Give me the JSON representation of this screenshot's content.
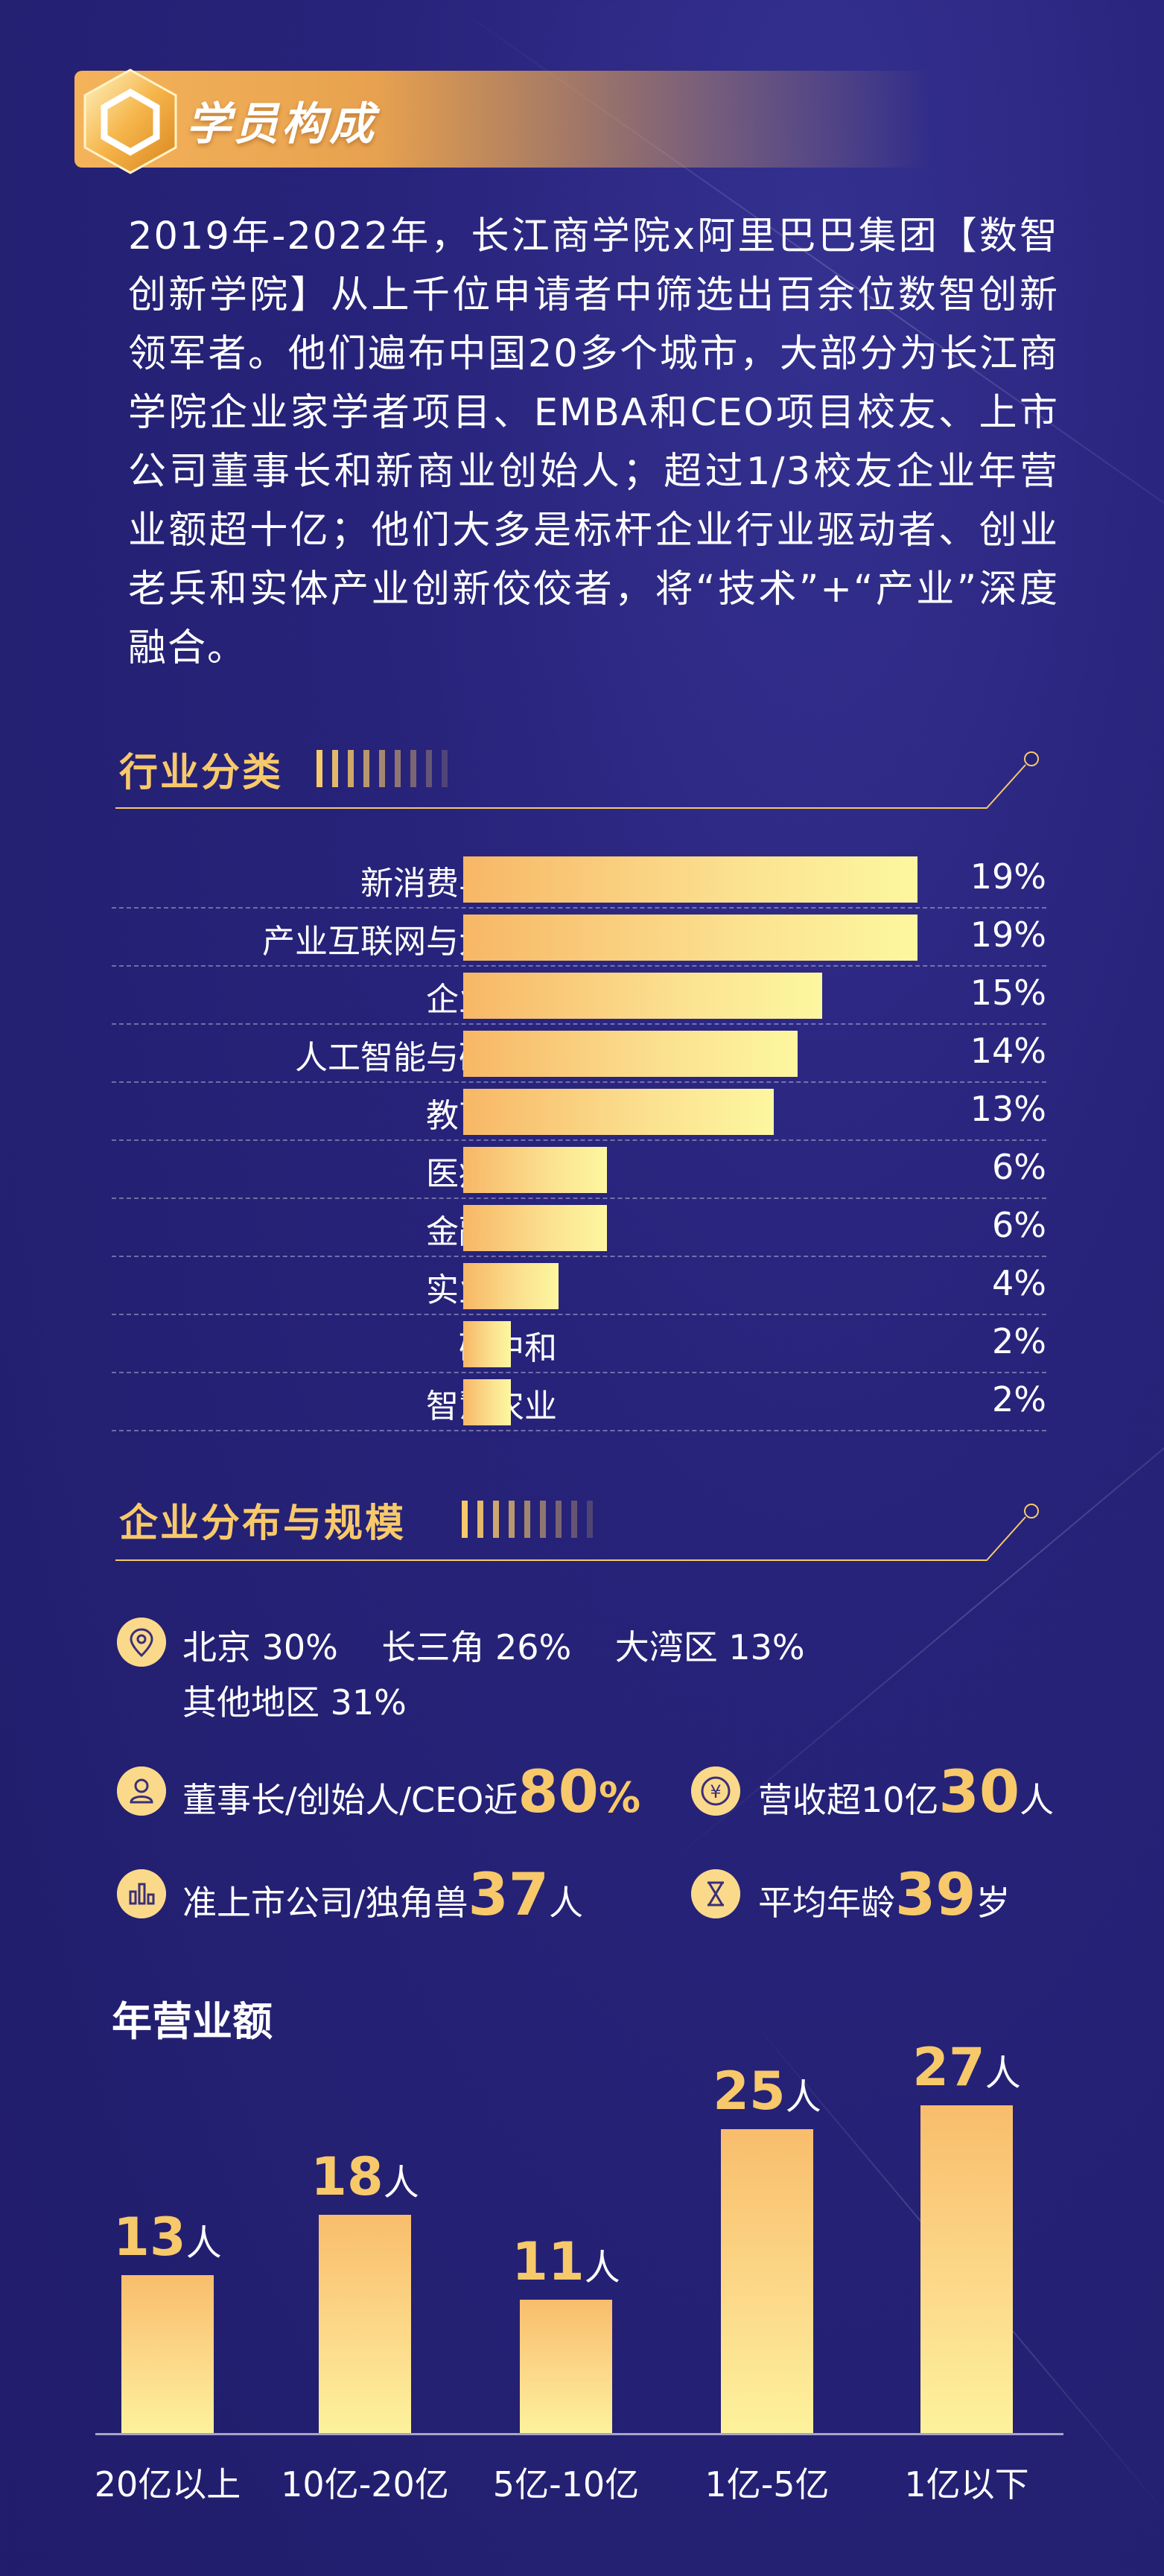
{
  "header": {
    "title": "学员构成"
  },
  "intro": {
    "text": "2019年-2022年，长江商学院x阿里巴巴集团【数智创新学院】从上千位申请者中筛选出百余位数智创新领军者。他们遍布中国20多个城市，大部分为长江商学院企业家学者项目、EMBA和CEO项目校友、上市公司董事长和新商业创始人；超过1/3校友企业年营业额超十亿；他们大多是标杆企业行业驱动者、创业老兵和实体产业创新佼佼者，将“技术”+“产业”深度融合。"
  },
  "industry": {
    "title": "行业分类",
    "items": [
      {
        "label": "新消费与营销",
        "value": "19%"
      },
      {
        "label": "产业互联网与大数据",
        "value": "19%"
      },
      {
        "label": "企业服务",
        "value": "15%"
      },
      {
        "label": "人工智能与硬科技",
        "value": "14%"
      },
      {
        "label": "教育文娱",
        "value": "13%"
      },
      {
        "label": "医疗健康",
        "value": "6%"
      },
      {
        "label": "金融科技",
        "value": "6%"
      },
      {
        "label": "实业创新",
        "value": "4%"
      },
      {
        "label": "碳中和",
        "value": "2%"
      },
      {
        "label": "智慧农业",
        "value": "2%"
      }
    ]
  },
  "chart_data": [
    {
      "type": "bar",
      "orientation": "horizontal",
      "categories": [
        "新消费与营销",
        "产业互联网与大数据",
        "企业服务",
        "人工智能与硬科技",
        "教育文娱",
        "医疗健康",
        "金融科技",
        "实业创新",
        "碳中和",
        "智慧农业"
      ],
      "values": [
        19,
        19,
        15,
        14,
        13,
        6,
        6,
        4,
        2,
        2
      ],
      "title": "行业分类"
    },
    {
      "type": "bar",
      "categories": [
        "20亿以上",
        "10亿-20亿",
        "5亿-10亿",
        "1亿-5亿",
        "1亿以下"
      ],
      "values": [
        13,
        18,
        11,
        25,
        27
      ],
      "unit": "人",
      "title": "年营业额"
    }
  ],
  "distribution": {
    "title": "企业分布与规模",
    "regions_line1": "北京 30%    长三角 26%    大湾区 13%",
    "regions_line2": "其他地区 31%",
    "ceo_label": "董事长/创始人/CEO近",
    "ceo_value": "80",
    "ceo_unit": "%",
    "revenue_label": "营收超10亿",
    "revenue_value": "30",
    "revenue_unit": "人",
    "listed_label": "准上市公司/独角兽",
    "listed_value": "37",
    "listed_unit": "人",
    "age_label": "平均年龄",
    "age_value": "39",
    "age_unit": "岁"
  },
  "revenue": {
    "title": "年营业额",
    "items": [
      {
        "label": "20亿以上",
        "value": "13",
        "unit": "人"
      },
      {
        "label": "10亿-20亿",
        "value": "18",
        "unit": "人"
      },
      {
        "label": "5亿-10亿",
        "value": "11",
        "unit": "人"
      },
      {
        "label": "1亿-5亿",
        "value": "25",
        "unit": "人"
      },
      {
        "label": "1亿以下",
        "value": "27",
        "unit": "人"
      }
    ]
  },
  "colors": {
    "accent": "#f7c96a",
    "background": "#27237a",
    "bar_start": "#f7b766",
    "bar_end": "#fdf7a0"
  },
  "icons": [
    "hexagon-badge-icon",
    "location-pin-icon",
    "person-icon",
    "yen-coin-icon",
    "bar-chart-icon",
    "hourglass-icon"
  ]
}
